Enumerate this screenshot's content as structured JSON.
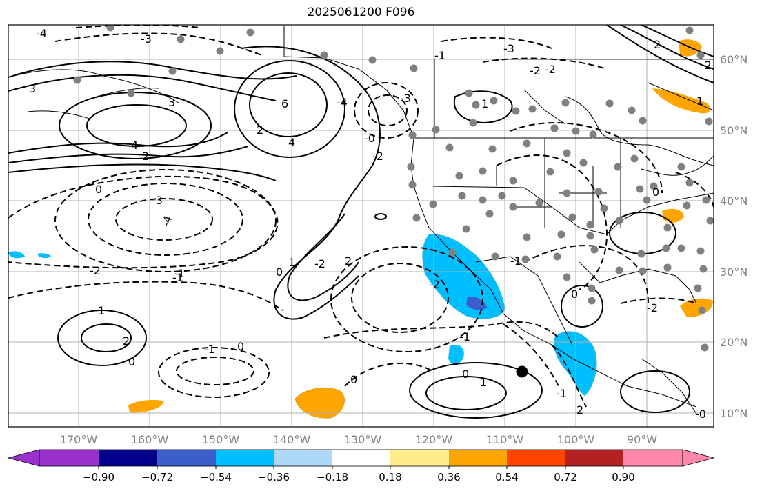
{
  "title": "2025061200 F096",
  "map": {
    "longitude_labels": [
      "170°W",
      "160°W",
      "150°W",
      "140°W",
      "130°W",
      "120°W",
      "110°W",
      "100°W",
      "90°W"
    ],
    "latitude_labels": [
      "10°N",
      "20°N",
      "30°N",
      "40°N",
      "50°N",
      "60°N"
    ],
    "label_color": "#808080",
    "grid_color": "#b0b0b0"
  },
  "contour_labels": [
    "3",
    "-4",
    "-3",
    "-2",
    "-1",
    "1",
    "2",
    "3",
    "4",
    "6",
    "0",
    "-0",
    "-1",
    "-2",
    "-3",
    "0",
    "-1",
    "-2",
    "-3",
    "1",
    "2",
    "4",
    "-4",
    "2",
    "-2",
    "-1",
    "2",
    "1",
    "0",
    "-1",
    "0",
    "1",
    "0",
    "-3",
    "-2",
    "-1",
    "2",
    "-2",
    "-1",
    "0",
    "-0",
    "0",
    "1",
    "2",
    "-2",
    "-4",
    "-2",
    "0"
  ],
  "colorbar": {
    "tick_labels": [
      "−0.90",
      "−0.72",
      "−0.54",
      "−0.36",
      "−0.18",
      "0.18",
      "0.36",
      "0.54",
      "0.72",
      "0.90"
    ],
    "colors": [
      "#9932cc",
      "#00008b",
      "#3a5fcd",
      "#00bfff",
      "#add8f7",
      "#ffffff",
      "#ffec8b",
      "#ffa500",
      "#ff4500",
      "#b22222",
      "#ff88aa"
    ]
  }
}
